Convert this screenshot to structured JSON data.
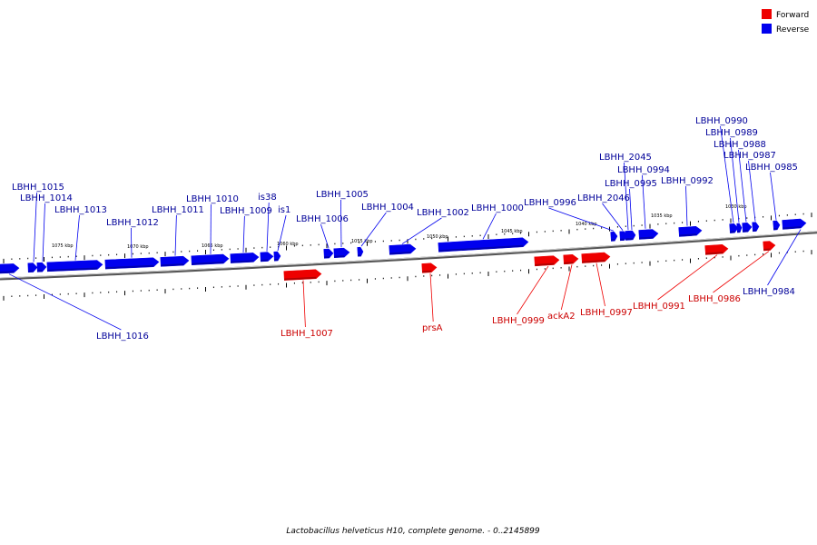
{
  "caption": "Lactobacillus helveticus H10, complete genome. - 0..2145899",
  "legend": [
    {
      "label": "Forward",
      "color": "#ee0000"
    },
    {
      "label": "Reverse",
      "color": "#0000ee"
    }
  ],
  "colors": {
    "forward": "#ee0000",
    "reverse": "#0000ee",
    "backbone": "#777777"
  },
  "tick_labels": [
    "1075 kbp",
    "1070 kbp",
    "1065 kbp",
    "1060 kbp",
    "1055 kbp",
    "1050 kbp",
    "1045 kbp",
    "1040 kbp",
    "1035 kbp",
    "1030 kbp"
  ],
  "genes": [
    {
      "name": "LBHH_1016",
      "strand": "reverse"
    },
    {
      "name": "LBHH_1015",
      "strand": "reverse"
    },
    {
      "name": "LBHH_1014",
      "strand": "reverse"
    },
    {
      "name": "LBHH_1013",
      "strand": "reverse"
    },
    {
      "name": "LBHH_1012",
      "strand": "reverse"
    },
    {
      "name": "LBHH_1011",
      "strand": "reverse"
    },
    {
      "name": "LBHH_1010",
      "strand": "reverse"
    },
    {
      "name": "LBHH_1009",
      "strand": "reverse"
    },
    {
      "name": "is38",
      "strand": "reverse"
    },
    {
      "name": "is1",
      "strand": "reverse"
    },
    {
      "name": "LBHH_1007",
      "strand": "forward"
    },
    {
      "name": "LBHH_1006",
      "strand": "reverse"
    },
    {
      "name": "LBHH_1005",
      "strand": "reverse"
    },
    {
      "name": "LBHH_1004",
      "strand": "reverse"
    },
    {
      "name": "prsA",
      "strand": "forward"
    },
    {
      "name": "LBHH_1002",
      "strand": "reverse"
    },
    {
      "name": "LBHH_1000",
      "strand": "reverse"
    },
    {
      "name": "LBHH_0999",
      "strand": "forward"
    },
    {
      "name": "ackA2",
      "strand": "forward"
    },
    {
      "name": "LBHH_0997",
      "strand": "forward"
    },
    {
      "name": "LBHH_0996",
      "strand": "reverse"
    },
    {
      "name": "LBHH_2046",
      "strand": "reverse"
    },
    {
      "name": "LBHH_2045",
      "strand": "reverse"
    },
    {
      "name": "LBHH_0995",
      "strand": "reverse"
    },
    {
      "name": "LBHH_0994",
      "strand": "reverse"
    },
    {
      "name": "LBHH_0992",
      "strand": "reverse"
    },
    {
      "name": "LBHH_0991",
      "strand": "forward"
    },
    {
      "name": "LBHH_0990",
      "strand": "reverse"
    },
    {
      "name": "LBHH_0989",
      "strand": "reverse"
    },
    {
      "name": "LBHH_0988",
      "strand": "reverse"
    },
    {
      "name": "LBHH_0987",
      "strand": "reverse"
    },
    {
      "name": "LBHH_0986",
      "strand": "forward"
    },
    {
      "name": "LBHH_0985",
      "strand": "reverse"
    },
    {
      "name": "LBHH_0984",
      "strand": "reverse"
    }
  ]
}
